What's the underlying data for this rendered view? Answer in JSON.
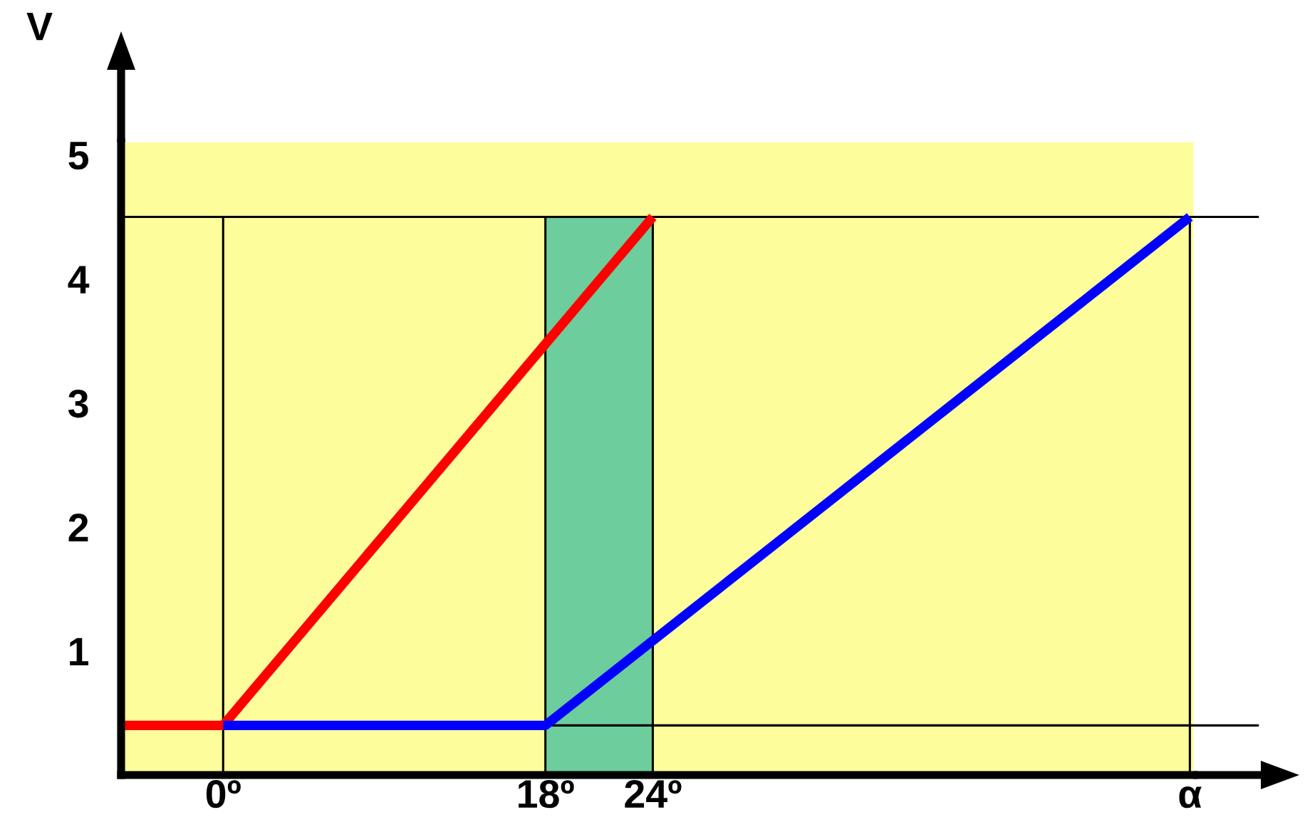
{
  "chart_data": {
    "type": "line",
    "ylabel": "V",
    "xlim": [
      -5.7,
      54.2
    ],
    "xticks": [
      {
        "value": 0,
        "label": "0º"
      },
      {
        "value": 18,
        "label": "18º"
      },
      {
        "value": 24,
        "label": "24º"
      },
      {
        "value": 54,
        "label": "α"
      }
    ],
    "ylim": [
      0,
      5.1
    ],
    "yticks": [
      1,
      2,
      3,
      4,
      5
    ],
    "series": [
      {
        "color": "#ff0000",
        "x": [
          -5.5,
          0,
          24
        ],
        "values": [
          0.4,
          0.4,
          4.5
        ]
      },
      {
        "color": "#0000ff",
        "x": [
          0,
          18,
          54
        ],
        "values": [
          0.4,
          0.4,
          4.5
        ]
      }
    ],
    "ref_lines": [
      {
        "axis": "y",
        "value": 4.5,
        "color": "#000000"
      },
      {
        "axis": "y",
        "value": 0.4,
        "color": "#000000"
      },
      {
        "axis": "x",
        "value": 0,
        "color": "#000000"
      },
      {
        "axis": "x",
        "value": 18,
        "color": "#000000"
      },
      {
        "axis": "x",
        "value": 24,
        "color": "#000000"
      },
      {
        "axis": "x",
        "value": 54,
        "color": "#000000"
      }
    ],
    "bands": [
      {
        "axis": "x",
        "from": 18,
        "to": 24,
        "color": "#6dcd9c"
      }
    ],
    "grid": false,
    "marker": "none",
    "line_style": "solid"
  }
}
